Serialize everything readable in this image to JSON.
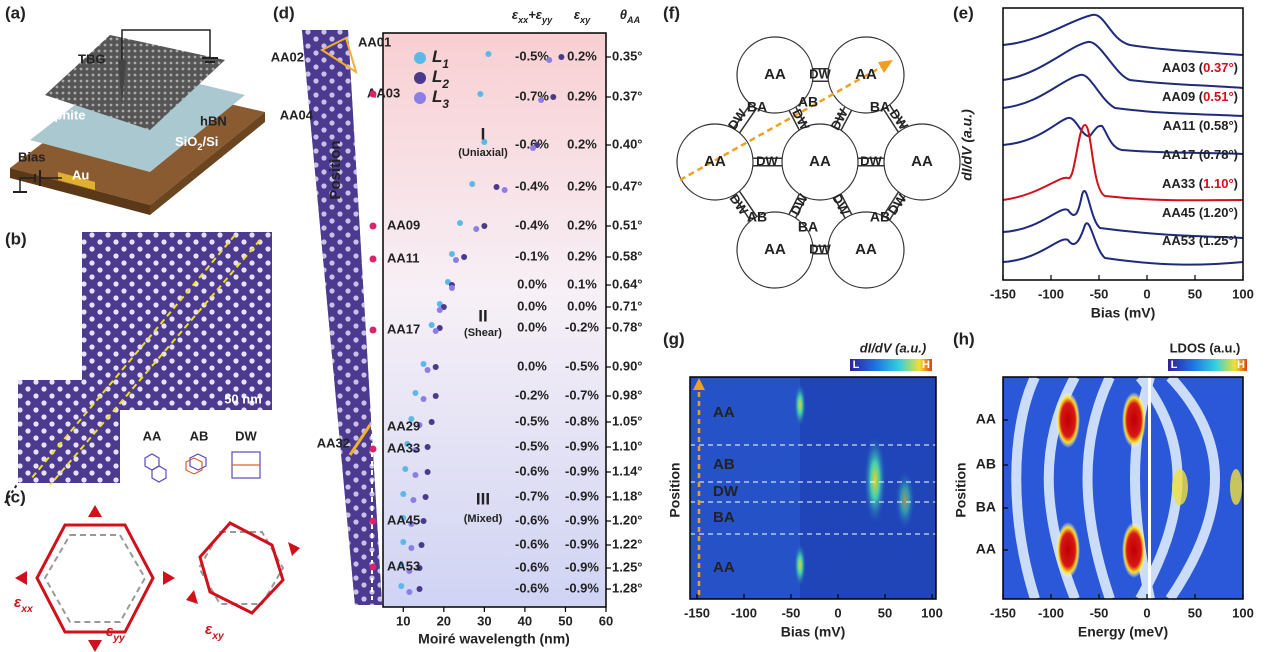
{
  "panel_labels": [
    "(a)",
    "(b)",
    "(c)",
    "(d)",
    "(e)",
    "(f)",
    "(g)",
    "(h)"
  ],
  "a": {
    "tbg": "TBG",
    "graphite": "Graphite",
    "hbn": "hBN",
    "substrate": [
      {
        "t": "SiO"
      },
      {
        "t": "2",
        "s": "sub"
      },
      {
        "t": "/Si"
      }
    ],
    "bias": "Bias",
    "au": "Au"
  },
  "b": {
    "scale_bar": "50 nm",
    "stackings": [
      "AA",
      "AB",
      "DW"
    ]
  },
  "c": {
    "exx": [
      {
        "t": "ε"
      },
      {
        "t": "xx",
        "s": "sub"
      }
    ],
    "eyy": [
      {
        "t": "ε"
      },
      {
        "t": "yy",
        "s": "sub"
      }
    ],
    "exy": [
      {
        "t": "ε"
      },
      {
        "t": "xy",
        "s": "sub"
      }
    ]
  },
  "d": {
    "headers": [
      [
        {
          "t": "ε"
        },
        {
          "t": "xx",
          "s": "sub"
        },
        {
          "t": "+ε"
        },
        {
          "t": "yy",
          "s": "sub"
        }
      ],
      [
        {
          "t": "ε"
        },
        {
          "t": "xy",
          "s": "sub"
        }
      ],
      [
        {
          "t": "θ"
        },
        {
          "t": "AA",
          "s": "sub"
        }
      ]
    ],
    "regimes": [
      {
        "name": "I",
        "desc": "(Uniaxial)"
      },
      {
        "name": "II",
        "desc": "(Shear)"
      },
      {
        "name": "III",
        "desc": "(Mixed)"
      }
    ],
    "sites": [
      "AA01",
      "AA02",
      "AA03",
      "AA04",
      "AA09",
      "AA11",
      "AA17",
      "AA29",
      "AA32",
      "AA33",
      "AA45",
      "AA53"
    ],
    "rows": [
      [
        "-0.5%",
        "0.2%",
        "0.35°"
      ],
      [
        "-0.7%",
        "0.2%",
        "0.37°"
      ],
      [
        "-0.6%",
        "0.2%",
        "0.40°"
      ],
      [
        "-0.4%",
        "0.2%",
        "0.47°"
      ],
      [
        "-0.4%",
        "0.2%",
        "0.51°"
      ],
      [
        "-0.1%",
        "0.2%",
        "0.58°"
      ],
      [
        "0.0%",
        "0.1%",
        "0.64°"
      ],
      [
        "0.0%",
        "0.0%",
        "0.71°"
      ],
      [
        "0.0%",
        "-0.2%",
        "0.78°"
      ],
      [
        "0.0%",
        "-0.5%",
        "0.90°"
      ],
      [
        "-0.2%",
        "-0.7%",
        "0.98°"
      ],
      [
        "-0.5%",
        "-0.8%",
        "1.05°"
      ],
      [
        "-0.5%",
        "-0.9%",
        "1.10°"
      ],
      [
        "-0.6%",
        "-0.9%",
        "1.14°"
      ],
      [
        "-0.7%",
        "-0.9%",
        "1.18°"
      ],
      [
        "-0.6%",
        "-0.9%",
        "1.20°"
      ],
      [
        "-0.6%",
        "-0.9%",
        "1.22°"
      ],
      [
        "-0.6%",
        "-0.9%",
        "1.25°"
      ],
      [
        "-0.6%",
        "-0.9%",
        "1.28°"
      ]
    ],
    "xlabel": "Moiré wavelength (nm)",
    "ylabel": "Position",
    "xlim": [
      5,
      60
    ],
    "xticks": [
      10,
      20,
      30,
      40,
      50,
      60
    ],
    "series": [
      {
        "name": [
          {
            "t": "L"
          },
          {
            "t": "1",
            "s": "sub"
          }
        ],
        "color": "#5db8e8",
        "values": [
          31,
          29,
          30,
          27,
          24,
          22,
          21,
          19,
          17,
          15,
          13,
          12,
          11,
          10.5,
          10,
          10,
          10,
          9.5,
          9.5
        ]
      },
      {
        "name": [
          {
            "t": "L"
          },
          {
            "t": "2",
            "s": "sub"
          }
        ],
        "color": "#4a3a8c",
        "values": [
          49,
          47,
          43,
          33,
          30,
          25,
          22,
          20,
          19,
          18,
          18,
          17,
          16,
          16,
          15.5,
          15,
          14.5,
          14,
          14
        ]
      },
      {
        "name": [
          {
            "t": "L"
          },
          {
            "t": "3",
            "s": "sub"
          }
        ],
        "color": "#8b7fe6",
        "values": [
          46,
          44,
          42,
          35,
          28,
          23,
          22,
          19,
          18,
          16,
          15,
          14,
          13,
          13,
          12.5,
          12,
          12,
          11.5,
          11.5
        ]
      }
    ]
  },
  "e": {
    "ylabel": "dI/dV (a.u.)",
    "xlabel": "Bias (mV)",
    "xlim": [
      -150,
      100
    ],
    "xticks": [
      -150,
      -100,
      -50,
      0,
      50,
      100
    ],
    "curves": [
      {
        "label": [
          {
            "t": "AA03 ("
          },
          {
            "t": "0.37°",
            "s": "red"
          },
          {
            "t": ")"
          }
        ],
        "color": "#1f2a7a"
      },
      {
        "label": [
          {
            "t": "AA09 ("
          },
          {
            "t": "0.51°",
            "s": "red"
          },
          {
            "t": ")"
          }
        ],
        "color": "#1f2a7a"
      },
      {
        "label": [
          {
            "t": "AA11 (0.58°)"
          }
        ],
        "color": "#1f2a7a"
      },
      {
        "label": [
          {
            "t": "AA17 (0.78°)"
          }
        ],
        "color": "#1f2a7a"
      },
      {
        "label": [
          {
            "t": "AA33 ("
          },
          {
            "t": "1.10°",
            "s": "red"
          },
          {
            "t": ")"
          }
        ],
        "color": "#d0101a"
      },
      {
        "label": [
          {
            "t": "AA45 (1.20°)"
          }
        ],
        "color": "#1f2a7a"
      },
      {
        "label": [
          {
            "t": "AA53 (1.25°)"
          }
        ],
        "color": "#1f2a7a"
      }
    ]
  },
  "f": {
    "nodes": [
      "AA",
      "AA",
      "AA",
      "AA",
      "AA",
      "AA",
      "AA"
    ],
    "walls": [
      "DW",
      "DW",
      "DW",
      "DW",
      "DW",
      "DW",
      "DW",
      "DW",
      "DW",
      "DW",
      "DW",
      "DW"
    ],
    "domains": [
      "BA",
      "AB",
      "BA",
      "AB",
      "BA",
      "AB"
    ]
  },
  "g": {
    "colorbar_title": "dI/dV (a.u.)",
    "low": "L",
    "high": "H",
    "regions": [
      "AA",
      "AB",
      "DW",
      "BA",
      "AA"
    ],
    "ylabel": "Position",
    "xlabel": "Bias (mV)",
    "xlim": [
      -150,
      100
    ],
    "xticks": [
      -150,
      -100,
      -50,
      0,
      50,
      100
    ]
  },
  "h": {
    "colorbar_title": "LDOS (a.u.)",
    "low": "L",
    "high": "H",
    "regions": [
      "AA",
      "AB",
      "BA",
      "AA"
    ],
    "ylabel": "Position",
    "xlabel": "Energy (meV)",
    "xlim": [
      -150,
      100
    ],
    "xticks": [
      -150,
      -100,
      -50,
      0,
      50,
      100
    ]
  }
}
